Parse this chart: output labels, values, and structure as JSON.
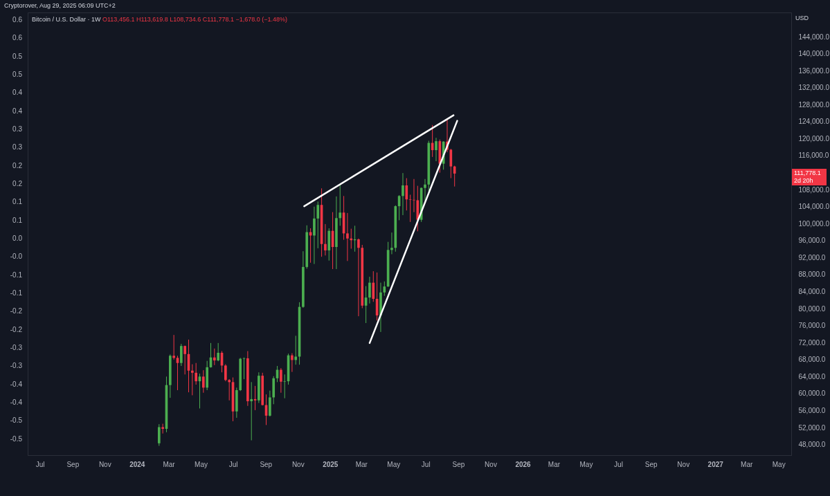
{
  "chart_data": {
    "type": "candlestick",
    "title": "Bitcoin / U.S. Dollar · 1W",
    "ylabel": "USD",
    "annotations": [
      "Cryptorover, Aug 29, 2025 06:09 UTC+2",
      "O113,456.1 H113,619.8 L108,734.6 C111,778.1 −1,678.0 (−1.48%)",
      "2d 20h",
      "111,778.1"
    ],
    "x": [
      "2024-02-12",
      "2024-02-19",
      "2024-02-26",
      "2024-03-04",
      "2024-03-11",
      "2024-03-18",
      "2024-03-25",
      "2024-04-01",
      "2024-04-08",
      "2024-04-15",
      "2024-04-22",
      "2024-04-29",
      "2024-05-06",
      "2024-05-13",
      "2024-05-20",
      "2024-05-27",
      "2024-06-03",
      "2024-06-10",
      "2024-06-17",
      "2024-06-24",
      "2024-07-01",
      "2024-07-08",
      "2024-07-15",
      "2024-07-22",
      "2024-07-29",
      "2024-08-05",
      "2024-08-12",
      "2024-08-19",
      "2024-08-26",
      "2024-09-02",
      "2024-09-09",
      "2024-09-16",
      "2024-09-23",
      "2024-09-30",
      "2024-10-07",
      "2024-10-14",
      "2024-10-21",
      "2024-10-28",
      "2024-11-04",
      "2024-11-11",
      "2024-11-18",
      "2024-11-25",
      "2024-12-02",
      "2024-12-09",
      "2024-12-16",
      "2024-12-23",
      "2024-12-30",
      "2025-01-06",
      "2025-01-13",
      "2025-01-20",
      "2025-01-27",
      "2025-02-03",
      "2025-02-10",
      "2025-02-17",
      "2025-02-24",
      "2025-03-03",
      "2025-03-10",
      "2025-03-17",
      "2025-03-24",
      "2025-03-31",
      "2025-04-07",
      "2025-04-14",
      "2025-04-21",
      "2025-04-28",
      "2025-05-05",
      "2025-05-12",
      "2025-05-19",
      "2025-05-26",
      "2025-06-02",
      "2025-06-09",
      "2025-06-16",
      "2025-06-23",
      "2025-06-30",
      "2025-07-07",
      "2025-07-14",
      "2025-07-21",
      "2025-07-28",
      "2025-08-04",
      "2025-08-11",
      "2025-08-18",
      "2025-08-25"
    ],
    "ohlc": [
      [
        48300,
        52800,
        47700,
        52100
      ],
      [
        52100,
        52900,
        50600,
        51700
      ],
      [
        51700,
        64000,
        50900,
        62000
      ],
      [
        62000,
        69200,
        59000,
        68900
      ],
      [
        68900,
        73800,
        68000,
        68400
      ],
      [
        68400,
        68900,
        60800,
        67200
      ],
      [
        67200,
        71700,
        66500,
        71200
      ],
      [
        71200,
        71300,
        64500,
        69300
      ],
      [
        69300,
        72700,
        60300,
        65400
      ],
      [
        65400,
        66900,
        59600,
        64900
      ],
      [
        64900,
        67200,
        62100,
        62900
      ],
      [
        62900,
        64700,
        56500,
        64000
      ],
      [
        64000,
        65500,
        60200,
        61400
      ],
      [
        61400,
        67700,
        60800,
        66200
      ],
      [
        66200,
        71900,
        66100,
        68500
      ],
      [
        68500,
        70600,
        66700,
        67800
      ],
      [
        67800,
        71900,
        67600,
        69600
      ],
      [
        69600,
        70000,
        65000,
        66600
      ],
      [
        66600,
        66900,
        62900,
        63200
      ],
      [
        63200,
        63400,
        58400,
        62700
      ],
      [
        62700,
        63800,
        53500,
        55800
      ],
      [
        55800,
        61400,
        54300,
        60800
      ],
      [
        60800,
        68400,
        60600,
        68200
      ],
      [
        68200,
        68500,
        63400,
        68300
      ],
      [
        68300,
        70000,
        57100,
        58200
      ],
      [
        58200,
        62700,
        49000,
        58700
      ],
      [
        58700,
        61800,
        56100,
        58400
      ],
      [
        58400,
        65000,
        57800,
        64200
      ],
      [
        64200,
        64900,
        57200,
        57300
      ],
      [
        57300,
        59800,
        52600,
        54800
      ],
      [
        54800,
        60700,
        54600,
        59100
      ],
      [
        59100,
        64100,
        57500,
        63600
      ],
      [
        63600,
        66500,
        62700,
        65600
      ],
      [
        65600,
        66000,
        60200,
        62800
      ],
      [
        62800,
        64500,
        58900,
        62900
      ],
      [
        62900,
        69400,
        62100,
        69000
      ],
      [
        69000,
        69500,
        65100,
        67900
      ],
      [
        67900,
        73600,
        66800,
        68700
      ],
      [
        68700,
        81500,
        66800,
        80400
      ],
      [
        80400,
        93500,
        80200,
        89800
      ],
      [
        89800,
        99600,
        89400,
        98000
      ],
      [
        98000,
        98900,
        90800,
        97200
      ],
      [
        97200,
        104000,
        90500,
        101200
      ],
      [
        101200,
        105200,
        94200,
        104400
      ],
      [
        104400,
        108300,
        92200,
        95200
      ],
      [
        95200,
        99900,
        92500,
        93700
      ],
      [
        93700,
        98900,
        91300,
        98300
      ],
      [
        98300,
        102700,
        89300,
        94500
      ],
      [
        94500,
        106400,
        89300,
        101300
      ],
      [
        101300,
        109300,
        99500,
        102600
      ],
      [
        102600,
        106500,
        96200,
        97700
      ],
      [
        97700,
        102500,
        91200,
        96500
      ],
      [
        96500,
        98800,
        94100,
        96100
      ],
      [
        96100,
        99500,
        93400,
        96300
      ],
      [
        96300,
        96500,
        78200,
        94300
      ],
      [
        94300,
        95000,
        80100,
        80700
      ],
      [
        80700,
        85300,
        76600,
        82600
      ],
      [
        82600,
        87500,
        81200,
        86100
      ],
      [
        86100,
        88800,
        81600,
        82300
      ],
      [
        82300,
        88500,
        77200,
        78400
      ],
      [
        78400,
        86100,
        74500,
        83800
      ],
      [
        83800,
        86400,
        83000,
        85200
      ],
      [
        85200,
        95700,
        85100,
        93800
      ],
      [
        93800,
        97900,
        92800,
        94300
      ],
      [
        94300,
        104300,
        93400,
        104100
      ],
      [
        104100,
        106700,
        100800,
        106500
      ],
      [
        106500,
        111900,
        102000,
        109000
      ],
      [
        109000,
        110700,
        103100,
        105700
      ],
      [
        105700,
        106800,
        100400,
        105600
      ],
      [
        105600,
        110500,
        102700,
        105500
      ],
      [
        105500,
        108900,
        98200,
        100900
      ],
      [
        100900,
        108500,
        100400,
        108400
      ],
      [
        108400,
        110500,
        105200,
        109200
      ],
      [
        109200,
        119500,
        107500,
        119000
      ],
      [
        119000,
        123200,
        115700,
        117300
      ],
      [
        117300,
        120200,
        114700,
        119400
      ],
      [
        119400,
        119800,
        112000,
        114100
      ],
      [
        114100,
        119400,
        112700,
        119300
      ],
      [
        119300,
        124500,
        116800,
        117400
      ],
      [
        117400,
        117600,
        110700,
        113456.1
      ],
      [
        113456.1,
        113619.8,
        108734.6,
        111778.1
      ]
    ],
    "colors": [
      "#4caf50",
      "#f23645",
      "#4caf50",
      "#4caf50",
      "#f23645",
      "#f23645",
      "#4caf50",
      "#f23645",
      "#f23645",
      "#f23645",
      "#f23645",
      "#4caf50",
      "#f23645",
      "#4caf50",
      "#4caf50",
      "#f23645",
      "#4caf50",
      "#f23645",
      "#f23645",
      "#f23645",
      "#f23645",
      "#4caf50",
      "#4caf50",
      "#4caf50",
      "#f23645",
      "#4caf50",
      "#f23645",
      "#4caf50",
      "#f23645",
      "#f23645",
      "#4caf50",
      "#4caf50",
      "#4caf50",
      "#f23645",
      "#4caf50",
      "#4caf50",
      "#f23645",
      "#4caf50",
      "#4caf50",
      "#4caf50",
      "#4caf50",
      "#f23645",
      "#4caf50",
      "#4caf50",
      "#f23645",
      "#f23645",
      "#4caf50",
      "#f23645",
      "#4caf50",
      "#4caf50",
      "#f23645",
      "#f23645",
      "#f23645",
      "#4caf50",
      "#f23645",
      "#f23645",
      "#4caf50",
      "#4caf50",
      "#f23645",
      "#f23645",
      "#4caf50",
      "#4caf50",
      "#4caf50",
      "#4caf50",
      "#4caf50",
      "#4caf50",
      "#4caf50",
      "#f23645",
      "#f23645",
      "#f23645",
      "#f23645",
      "#4caf50",
      "#4caf50",
      "#4caf50",
      "#f23645",
      "#4caf50",
      "#f23645",
      "#4caf50",
      "#f23645",
      "#f23645",
      "#f23645"
    ],
    "series": [
      {
        "type": "line",
        "color": "#ffffff",
        "x": [
          "2024-11-13",
          "2025-08-23"
        ],
        "values": [
          104100,
          125500
        ]
      },
      {
        "type": "line",
        "color": "#ffffff",
        "x": [
          "2025-03-17",
          "2025-08-30"
        ],
        "values": [
          71900,
          124200
        ]
      }
    ],
    "xlim": [
      "2023-06-08",
      "2027-05-25"
    ],
    "xticks": [
      {
        "value": "2023-07-01",
        "label": "Jul"
      },
      {
        "value": "2023-09-01",
        "label": "Sep"
      },
      {
        "value": "2023-11-01",
        "label": "Nov"
      },
      {
        "value": "2024-01-01",
        "label": "2024"
      },
      {
        "value": "2024-03-01",
        "label": "Mar"
      },
      {
        "value": "2024-05-01",
        "label": "May"
      },
      {
        "value": "2024-07-01",
        "label": "Jul"
      },
      {
        "value": "2024-09-01",
        "label": "Sep"
      },
      {
        "value": "2024-11-01",
        "label": "Nov"
      },
      {
        "value": "2025-01-01",
        "label": "2025"
      },
      {
        "value": "2025-03-01",
        "label": "Mar"
      },
      {
        "value": "2025-05-01",
        "label": "May"
      },
      {
        "value": "2025-07-01",
        "label": "Jul"
      },
      {
        "value": "2025-09-01",
        "label": "Sep"
      },
      {
        "value": "2025-11-01",
        "label": "Nov"
      },
      {
        "value": "2026-01-01",
        "label": "2026"
      },
      {
        "value": "2026-03-01",
        "label": "Mar"
      },
      {
        "value": "2026-05-01",
        "label": "May"
      },
      {
        "value": "2026-07-01",
        "label": "Jul"
      },
      {
        "value": "2026-09-01",
        "label": "Sep"
      },
      {
        "value": "2026-11-01",
        "label": "Nov"
      },
      {
        "value": "2027-01-01",
        "label": "2027"
      },
      {
        "value": "2027-03-01",
        "label": "Mar"
      },
      {
        "value": "2027-05-01",
        "label": "May"
      }
    ],
    "ylim": [
      45500,
      149700
    ],
    "yticks": [
      {
        "value": 48000,
        "label": "48,000.0"
      },
      {
        "value": 52000,
        "label": "52,000.0"
      },
      {
        "value": 56000,
        "label": "56,000.0"
      },
      {
        "value": 60000,
        "label": "60,000.0"
      },
      {
        "value": 64000,
        "label": "64,000.0"
      },
      {
        "value": 68000,
        "label": "68,000.0"
      },
      {
        "value": 72000,
        "label": "72,000.0"
      },
      {
        "value": 76000,
        "label": "76,000.0"
      },
      {
        "value": 80000,
        "label": "80,000.0"
      },
      {
        "value": 84000,
        "label": "84,000.0"
      },
      {
        "value": 88000,
        "label": "88,000.0"
      },
      {
        "value": 92000,
        "label": "92,000.0"
      },
      {
        "value": 96000,
        "label": "96,000.0"
      },
      {
        "value": 100000,
        "label": "100,000.0"
      },
      {
        "value": 104000,
        "label": "104,000.0"
      },
      {
        "value": 108000,
        "label": "108,000.0"
      },
      {
        "value": 116000,
        "label": "116,000.0"
      },
      {
        "value": 120000,
        "label": "120,000.0"
      },
      {
        "value": 124000,
        "label": "124,000.0"
      },
      {
        "value": 128000,
        "label": "128,000.0"
      },
      {
        "value": 132000,
        "label": "132,000.0"
      },
      {
        "value": 136000,
        "label": "136,000.0"
      },
      {
        "value": 140000,
        "label": "140,000.0"
      },
      {
        "value": 144000,
        "label": "144,000.0"
      }
    ],
    "y2lim": [
      -0.594,
      0.621
    ],
    "y2ticks": [
      {
        "value": 0.6,
        "label": "0.6"
      },
      {
        "value": 0.55,
        "label": "0.6"
      },
      {
        "value": 0.5,
        "label": "0.5"
      },
      {
        "value": 0.45,
        "label": "0.5"
      },
      {
        "value": 0.4,
        "label": "0.4"
      },
      {
        "value": 0.35,
        "label": "0.4"
      },
      {
        "value": 0.3,
        "label": "0.3"
      },
      {
        "value": 0.25,
        "label": "0.3"
      },
      {
        "value": 0.2,
        "label": "0.2"
      },
      {
        "value": 0.15,
        "label": "0.2"
      },
      {
        "value": 0.1,
        "label": "0.1"
      },
      {
        "value": 0.05,
        "label": "0.1"
      },
      {
        "value": 0,
        "label": "0.0"
      },
      {
        "value": -0.05,
        "label": "-0.0"
      },
      {
        "value": -0.1,
        "label": "-0.1"
      },
      {
        "value": -0.15,
        "label": "-0.1"
      },
      {
        "value": -0.2,
        "label": "-0.2"
      },
      {
        "value": -0.25,
        "label": "-0.2"
      },
      {
        "value": -0.3,
        "label": "-0.3"
      },
      {
        "value": -0.35,
        "label": "-0.3"
      },
      {
        "value": -0.4,
        "label": "-0.4"
      },
      {
        "value": -0.45,
        "label": "-0.4"
      },
      {
        "value": -0.5,
        "label": "-0.5"
      },
      {
        "value": -0.55,
        "label": "-0.5"
      }
    ]
  }
}
